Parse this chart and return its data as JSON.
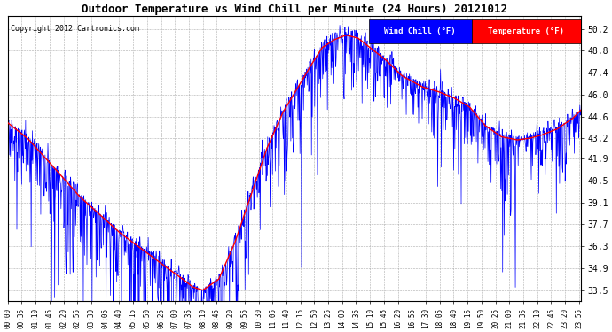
{
  "title": "Outdoor Temperature vs Wind Chill per Minute (24 Hours) 20121012",
  "copyright": "Copyright 2012 Cartronics.com",
  "legend_wind_chill": "Wind Chill (°F)",
  "legend_temperature": "Temperature (°F)",
  "wind_chill_color": "#0000ff",
  "temperature_color": "#ff0000",
  "background_color": "#ffffff",
  "grid_color": "#aaaaaa",
  "yticks": [
    33.5,
    34.9,
    36.3,
    37.7,
    39.1,
    40.5,
    41.9,
    43.2,
    44.6,
    46.0,
    47.4,
    48.8,
    50.2
  ],
  "ylim": [
    32.8,
    51.0
  ],
  "total_minutes": 1440,
  "x_tick_labels": [
    "00:00",
    "00:35",
    "01:10",
    "01:45",
    "02:20",
    "02:55",
    "03:30",
    "04:05",
    "04:40",
    "05:15",
    "05:50",
    "06:25",
    "07:00",
    "07:35",
    "08:10",
    "08:45",
    "09:20",
    "09:55",
    "10:30",
    "11:05",
    "11:40",
    "12:15",
    "12:50",
    "13:25",
    "14:00",
    "14:35",
    "15:10",
    "15:45",
    "16:20",
    "16:55",
    "17:30",
    "18:05",
    "18:40",
    "19:15",
    "19:50",
    "20:25",
    "21:00",
    "21:35",
    "22:10",
    "22:45",
    "23:20",
    "23:55"
  ],
  "temp_points_x": [
    0,
    50,
    100,
    180,
    280,
    380,
    440,
    465,
    490,
    530,
    570,
    610,
    650,
    690,
    730,
    760,
    790,
    820,
    850,
    880,
    910,
    950,
    990,
    1040,
    1080,
    1120,
    1160,
    1200,
    1240,
    1280,
    1310,
    1340,
    1380,
    1420,
    1439
  ],
  "temp_points_y": [
    44.2,
    43.2,
    41.8,
    39.5,
    37.2,
    35.3,
    34.2,
    33.7,
    33.5,
    34.2,
    36.5,
    39.5,
    42.5,
    44.8,
    46.5,
    47.8,
    49.0,
    49.5,
    49.8,
    49.6,
    49.0,
    48.2,
    47.2,
    46.5,
    46.2,
    45.8,
    45.2,
    44.0,
    43.3,
    43.1,
    43.2,
    43.4,
    43.8,
    44.5,
    45.0
  ]
}
